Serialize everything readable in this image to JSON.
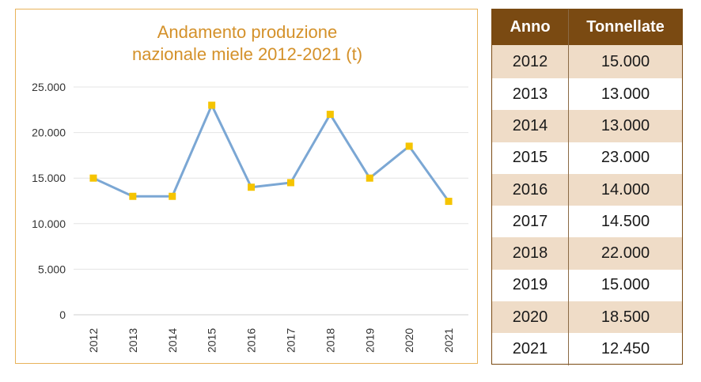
{
  "chart_title_lines": [
    "Andamento produzione",
    "nazionale miele 2012-2021 (t)"
  ],
  "table": {
    "headers": {
      "year": "Anno",
      "value": "Tonnellate"
    },
    "rows": [
      {
        "year": "2012",
        "value": "15.000"
      },
      {
        "year": "2013",
        "value": "13.000"
      },
      {
        "year": "2014",
        "value": "13.000"
      },
      {
        "year": "2015",
        "value": "23.000"
      },
      {
        "year": "2016",
        "value": "14.000"
      },
      {
        "year": "2017",
        "value": "14.500"
      },
      {
        "year": "2018",
        "value": "22.000"
      },
      {
        "year": "2019",
        "value": "15.000"
      },
      {
        "year": "2020",
        "value": "18.500"
      },
      {
        "year": "2021",
        "value": "12.450"
      }
    ]
  },
  "chart_data": {
    "type": "line",
    "title": "Andamento produzione nazionale miele 2012-2021 (t)",
    "categories": [
      "2012",
      "2013",
      "2014",
      "2015",
      "2016",
      "2017",
      "2018",
      "2019",
      "2020",
      "2021"
    ],
    "series": [
      {
        "values": [
          15000,
          13000,
          13000,
          23000,
          14000,
          14500,
          22000,
          15000,
          18500,
          12450
        ]
      }
    ],
    "ylim": [
      0,
      25000
    ],
    "yticks": [
      0,
      5000,
      10000,
      15000,
      20000,
      25000
    ],
    "ytick_labels": [
      "0",
      "5.000",
      "10.000",
      "15.000",
      "20.000",
      "25.000"
    ],
    "grid": true,
    "line_color": "#7ba7d4",
    "marker_color": "#f5c400",
    "title_color": "#d4912a",
    "border_color": "#e8b35a"
  },
  "colors": {
    "table_header_bg": "#7a4a12",
    "table_shade": "#efdcc7"
  }
}
